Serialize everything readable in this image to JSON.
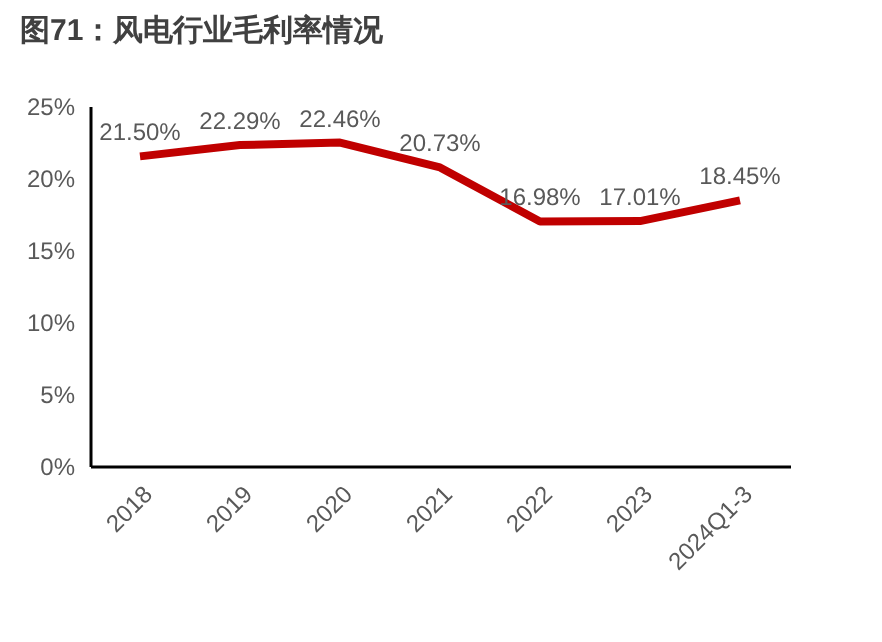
{
  "chart_data": {
    "type": "line",
    "title": "图71：风电行业毛利率情况",
    "categories": [
      "2018",
      "2019",
      "2020",
      "2021",
      "2022",
      "2023",
      "2024Q1-3"
    ],
    "series": [
      {
        "color": "#c00000",
        "values": [
          21.5,
          22.29,
          22.46,
          20.73,
          16.98,
          17.01,
          18.45
        ]
      }
    ],
    "value_labels": [
      "21.50%",
      "22.29%",
      "22.46%",
      "20.73%",
      "16.98%",
      "17.01%",
      "18.45%"
    ],
    "ylim": [
      0,
      25
    ],
    "yticks": [
      {
        "value": 0,
        "label": "0%"
      },
      {
        "value": 5,
        "label": "5%"
      },
      {
        "value": 10,
        "label": "10%"
      },
      {
        "value": 15,
        "label": "15%"
      },
      {
        "value": 20,
        "label": "20%"
      },
      {
        "value": 25,
        "label": "25%"
      }
    ],
    "grid": false,
    "legend": false,
    "marker": "none",
    "line_style": "solid"
  }
}
